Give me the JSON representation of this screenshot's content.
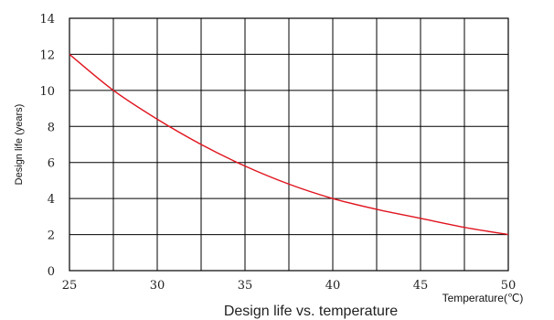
{
  "chart_data": {
    "type": "line",
    "title": "",
    "caption": "Design life vs. temperature",
    "xlabel": "Temperature(℃)",
    "ylabel": "Design life (years)",
    "xlim": [
      25,
      50
    ],
    "ylim": [
      0,
      14
    ],
    "x_ticks": [
      "25",
      "30",
      "35",
      "40",
      "45",
      "50"
    ],
    "y_ticks": [
      "0",
      "2",
      "4",
      "6",
      "8",
      "10",
      "12",
      "14"
    ],
    "grid": true,
    "series": [
      {
        "color": "#e0141e",
        "x": [
          25,
          27.5,
          30,
          32.5,
          35,
          37.5,
          40,
          42.5,
          45,
          47.5,
          50
        ],
        "y": [
          12,
          10,
          8.4,
          7,
          5.8,
          4.8,
          4.0,
          3.4,
          2.9,
          2.4,
          2.0
        ]
      }
    ]
  }
}
